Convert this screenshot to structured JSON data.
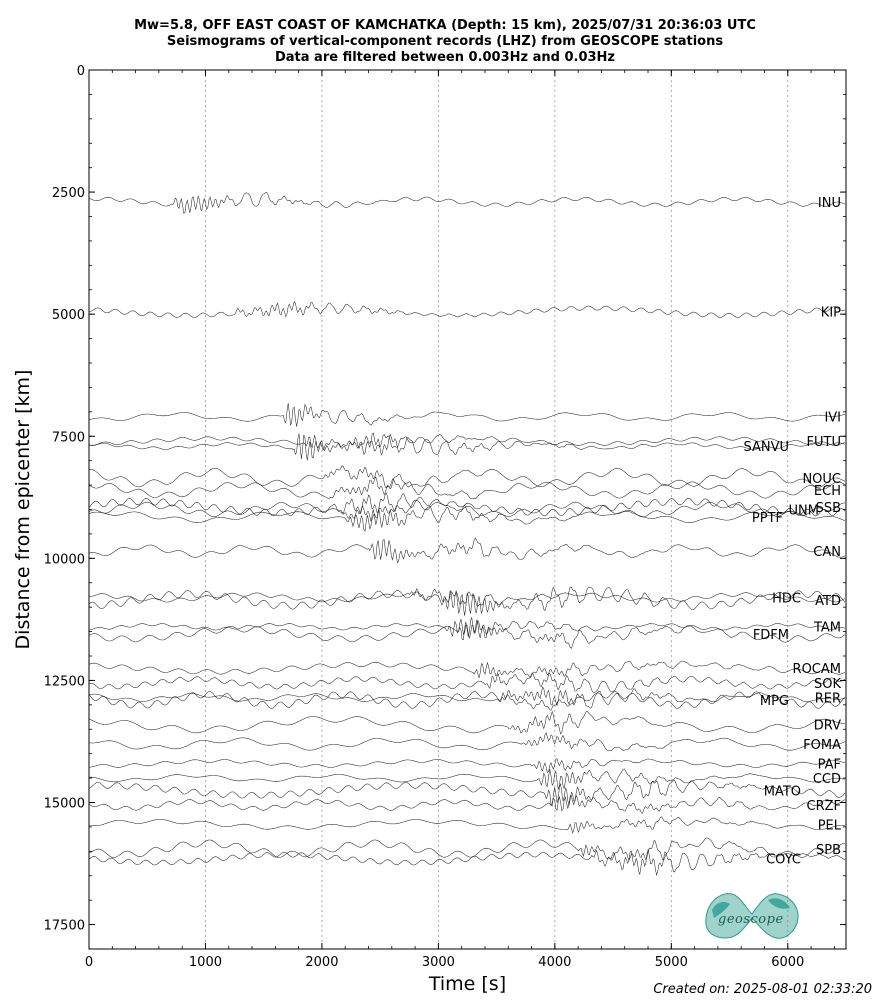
{
  "header": {
    "title_line1": "Mw=5.8, OFF EAST COAST OF KAMCHATKA (Depth: 15 km), 2025/07/31 20:36:03 UTC",
    "title_line2": "Seismograms of vertical-component records (LHZ) from GEOSCOPE stations",
    "title_line3": "Data are filtered between 0.003Hz and 0.03Hz"
  },
  "footer": {
    "created": "Created on: 2025-08-01 02:33:20",
    "logo_text": "geoscope"
  },
  "colors": {
    "trace": "#000000",
    "logo": "#2a9d8f",
    "grid": "#9a9a9a"
  },
  "chart_data": {
    "type": "line",
    "xlabel": "Time [s]",
    "ylabel": "Distance from epicenter [km]",
    "xlim": [
      0,
      6500
    ],
    "ylim": [
      18000,
      0
    ],
    "xticks": [
      0,
      1000,
      2000,
      3000,
      4000,
      5000,
      6000
    ],
    "yticks": [
      0,
      2500,
      5000,
      7500,
      10000,
      12500,
      15000,
      17500
    ],
    "x_grid": true,
    "stations": [
      {
        "name": "INU",
        "distance": 2700,
        "onset": 700
      },
      {
        "name": "KIP",
        "distance": 4950,
        "onset": 1230
      },
      {
        "name": "IVI",
        "distance": 7100,
        "onset": 1650
      },
      {
        "name": "SANVU",
        "distance": 7700,
        "onset": 1750
      },
      {
        "name": "FUTU",
        "distance": 7600,
        "onset": 1850
      },
      {
        "name": "NOUC",
        "distance": 8350,
        "onset": 2000
      },
      {
        "name": "ECH",
        "distance": 8600,
        "onset": 2050
      },
      {
        "name": "SSB",
        "distance": 8950,
        "onset": 2100
      },
      {
        "name": "UNM",
        "distance": 9000,
        "onset": 2150
      },
      {
        "name": "PPTF",
        "distance": 9150,
        "onset": 2200
      },
      {
        "name": "CAN",
        "distance": 9850,
        "onset": 2400
      },
      {
        "name": "HDC",
        "distance": 10800,
        "onset": 2750
      },
      {
        "name": "ATD",
        "distance": 10850,
        "onset": 3000
      },
      {
        "name": "TAM",
        "distance": 11400,
        "onset": 3050
      },
      {
        "name": "FDFM",
        "distance": 11550,
        "onset": 3150
      },
      {
        "name": "ROCAM",
        "distance": 12250,
        "onset": 3300
      },
      {
        "name": "SOK",
        "distance": 12550,
        "onset": 3400
      },
      {
        "name": "RER",
        "distance": 12850,
        "onset": 3500
      },
      {
        "name": "MPG",
        "distance": 12900,
        "onset": 3500
      },
      {
        "name": "DRV",
        "distance": 13400,
        "onset": 3600
      },
      {
        "name": "FOMA",
        "distance": 13800,
        "onset": 3700
      },
      {
        "name": "PAF",
        "distance": 14200,
        "onset": 3800
      },
      {
        "name": "CCD",
        "distance": 14500,
        "onset": 3850
      },
      {
        "name": "MATO",
        "distance": 14750,
        "onset": 3900
      },
      {
        "name": "CRZF",
        "distance": 15050,
        "onset": 3950
      },
      {
        "name": "PEL",
        "distance": 15450,
        "onset": 4100
      },
      {
        "name": "SPB",
        "distance": 15950,
        "onset": 4200
      },
      {
        "name": "COYC",
        "distance": 16150,
        "onset": 4300
      }
    ]
  }
}
